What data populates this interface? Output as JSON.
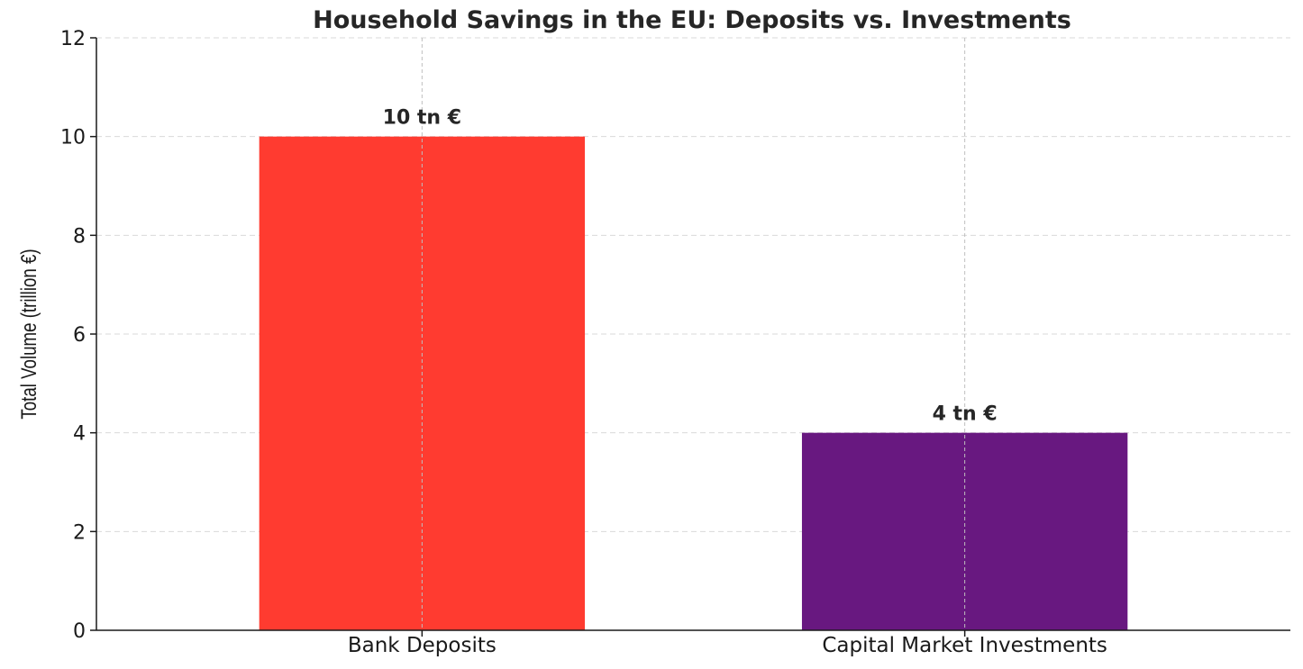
{
  "chart_data": {
    "type": "bar",
    "title": "Household Savings in the EU: Deposits vs. Investments",
    "xlabel": "",
    "ylabel": "Total Volume (trillion €)",
    "categories": [
      "Bank Deposits",
      "Capital Market Investments"
    ],
    "values": [
      10,
      4
    ],
    "data_labels": [
      "10 tn €",
      "4 tn €"
    ],
    "colors": [
      "#ff3b30",
      "#681880"
    ],
    "ylim": [
      0,
      12
    ],
    "yticks": [
      "0",
      "2",
      "4",
      "6",
      "8",
      "10",
      "12"
    ],
    "grid": true,
    "legend": "none"
  }
}
